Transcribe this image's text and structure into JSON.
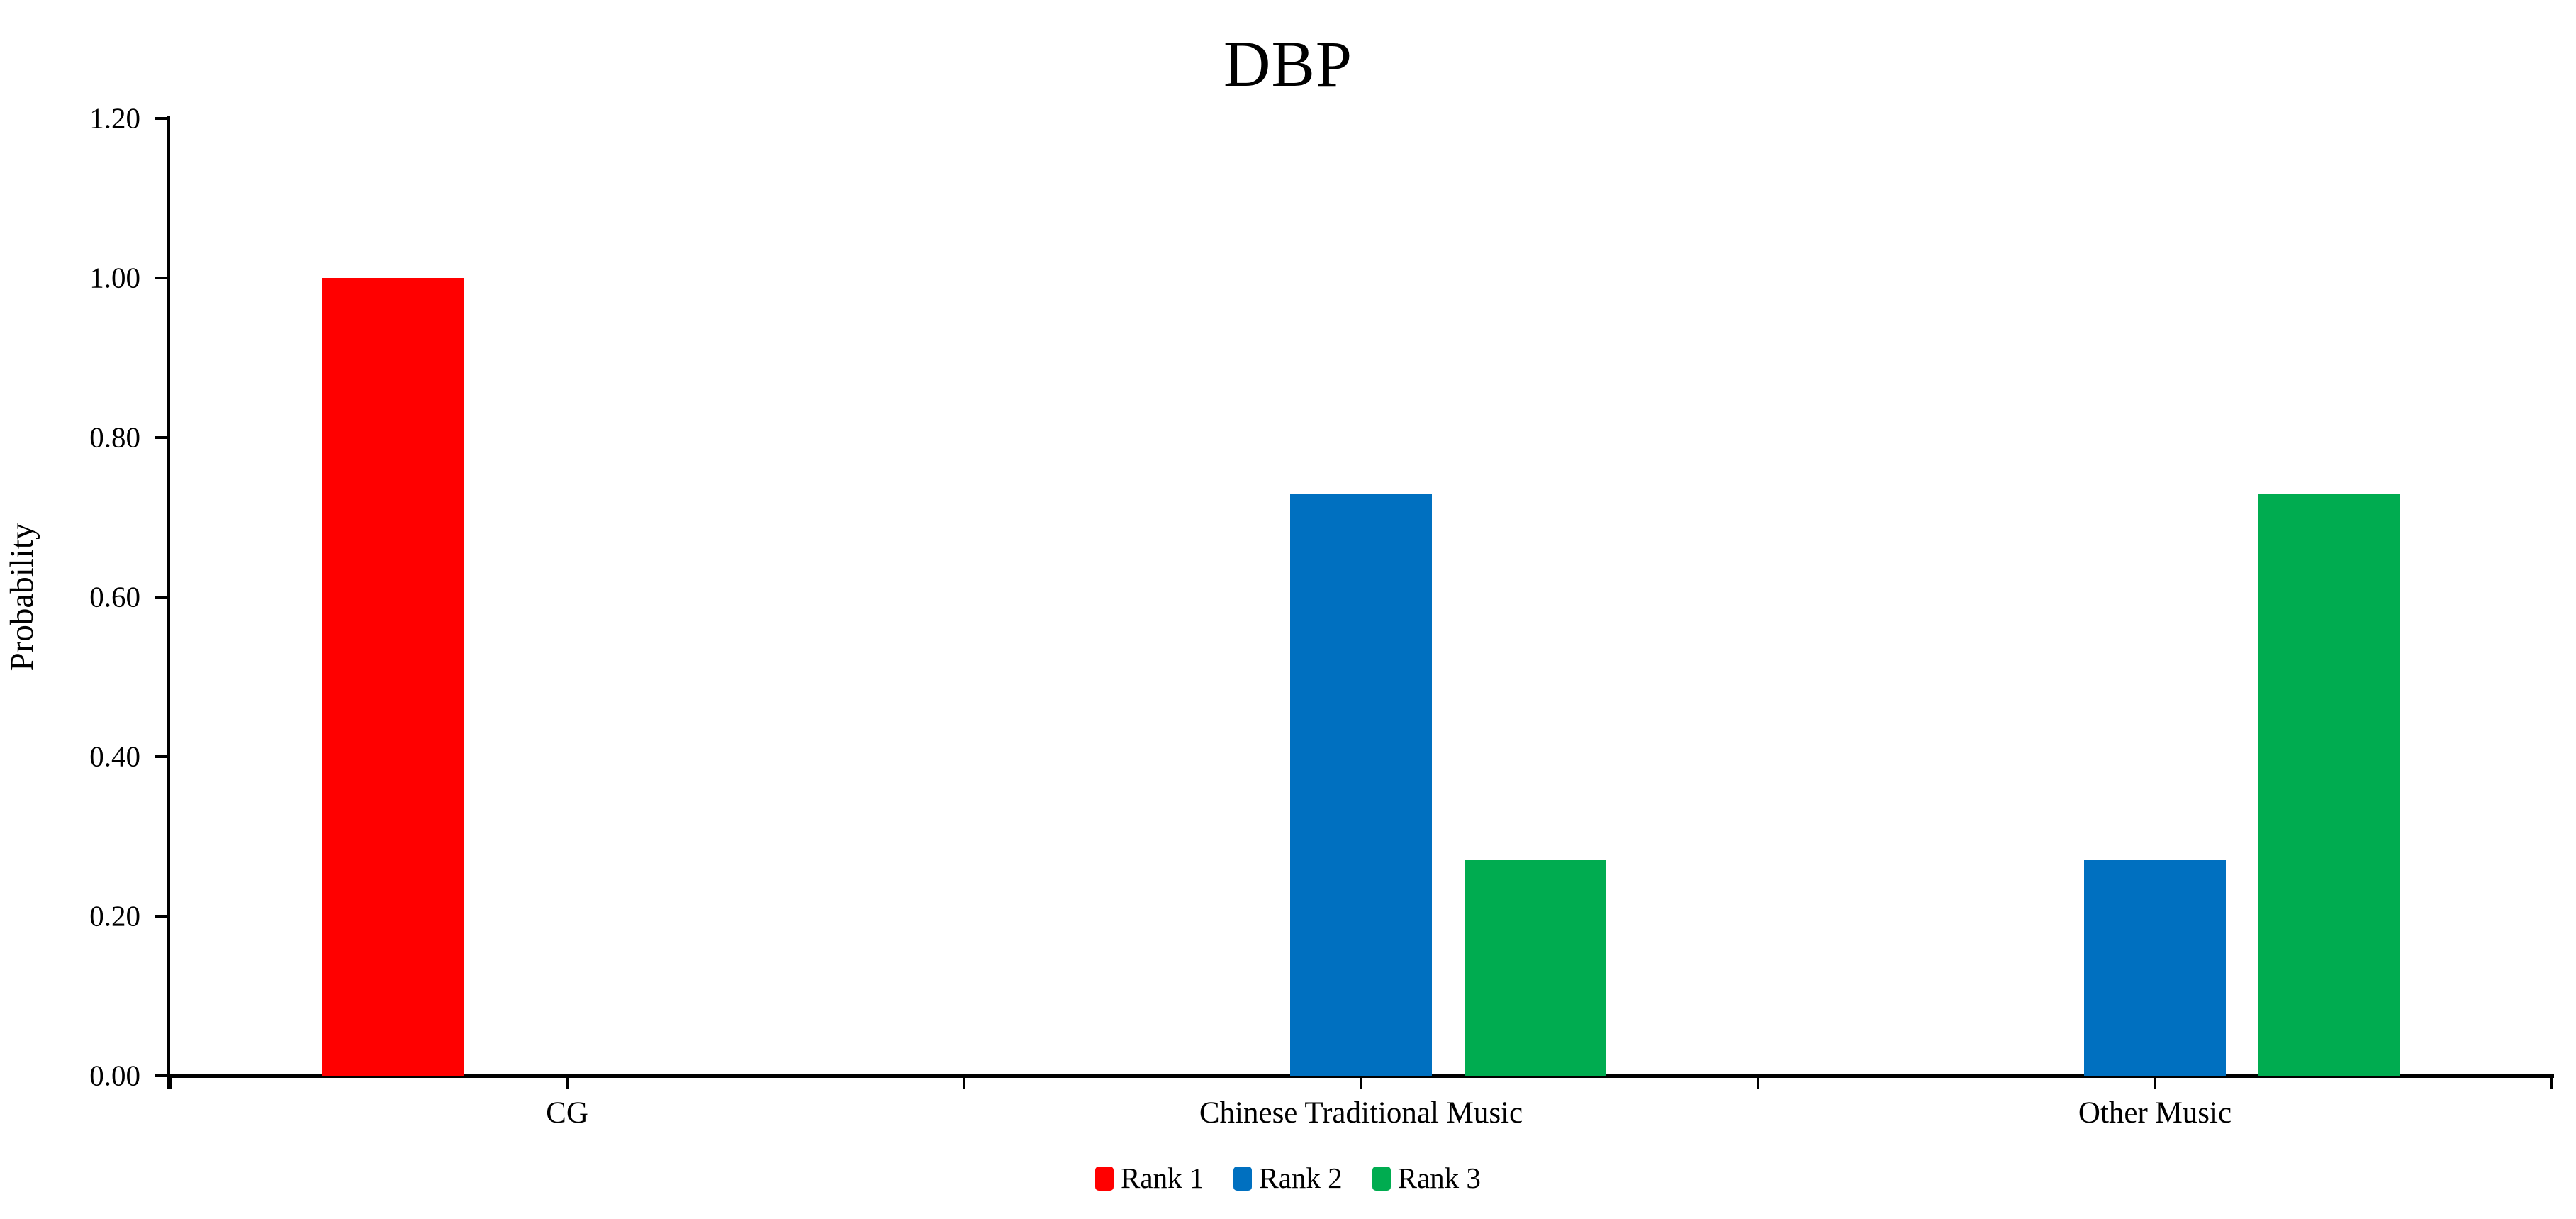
{
  "title": "DBP",
  "colors": {
    "rank1": "#FF0000",
    "rank2": "#0070C0",
    "rank3": "#00AC50",
    "axis": "#000000",
    "background": "#FFFFFF"
  },
  "chart_data": {
    "type": "bar",
    "title": "DBP",
    "xlabel": "",
    "ylabel": "Probability",
    "categories": [
      "CG",
      "Chinese Traditional Music",
      "Other Music"
    ],
    "series": [
      {
        "name": "Rank 1",
        "color": "#FF0000",
        "values": [
          1.0,
          0,
          0
        ]
      },
      {
        "name": "Rank 2",
        "color": "#0070C0",
        "values": [
          0,
          0.73,
          0.27
        ]
      },
      {
        "name": "Rank 3",
        "color": "#00AC50",
        "values": [
          0,
          0.27,
          0.73
        ]
      }
    ],
    "ylim": [
      0,
      1.2
    ],
    "ytick_step": 0.2,
    "ytick_labels": [
      "0.00",
      "0.20",
      "0.40",
      "0.60",
      "0.80",
      "1.00",
      "1.20"
    ],
    "grid": false,
    "legend_position": "bottom",
    "legend_labels": [
      "Rank 1",
      "Rank 2",
      "Rank 3"
    ]
  }
}
